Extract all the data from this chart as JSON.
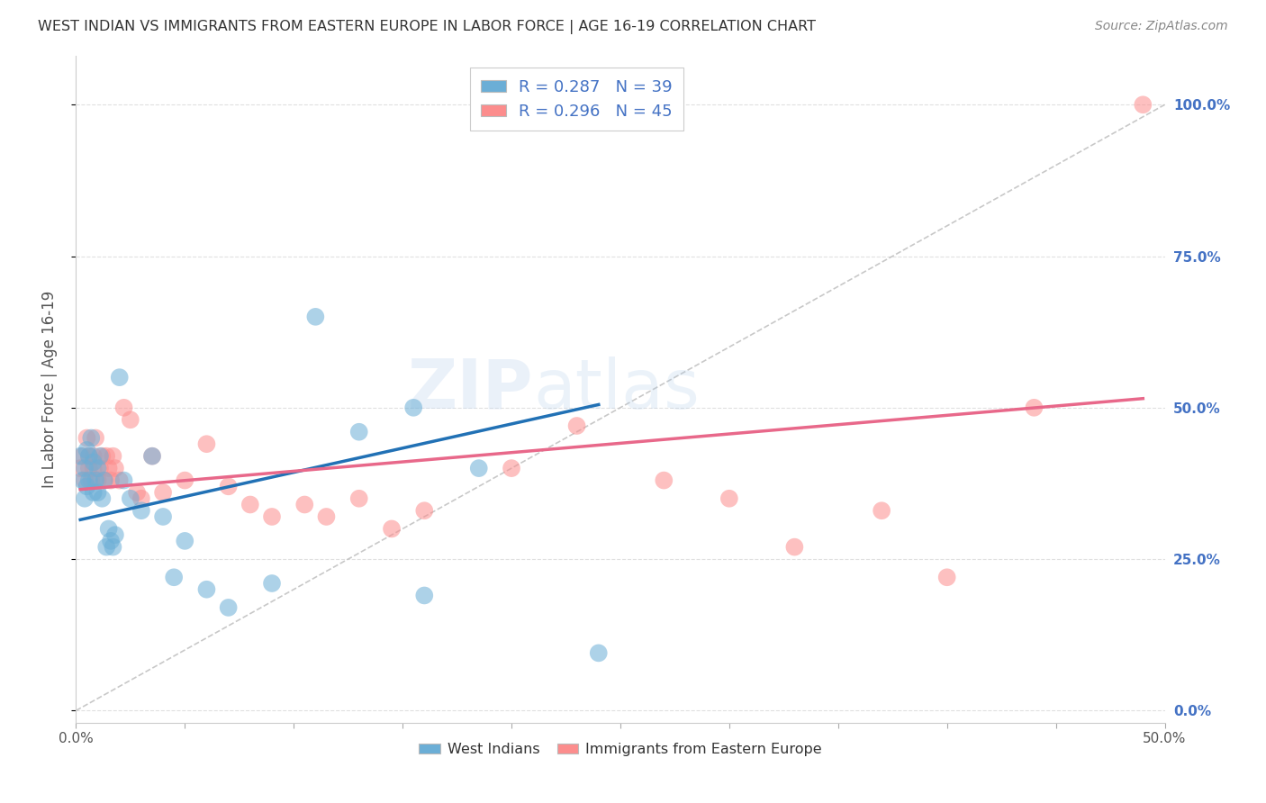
{
  "title": "WEST INDIAN VS IMMIGRANTS FROM EASTERN EUROPE IN LABOR FORCE | AGE 16-19 CORRELATION CHART",
  "source": "Source: ZipAtlas.com",
  "ylabel": "In Labor Force | Age 16-19",
  "xlim": [
    0.0,
    0.5
  ],
  "ylim": [
    -0.02,
    1.08
  ],
  "xtick_positions": [
    0.0,
    0.5
  ],
  "xtick_labels": [
    "0.0%",
    "50.0%"
  ],
  "ytick_positions": [
    0.0,
    0.25,
    0.5,
    0.75,
    1.0
  ],
  "ytick_labels_right": [
    "0.0%",
    "25.0%",
    "50.0%",
    "75.0%",
    "100.0%"
  ],
  "blue_color": "#6baed6",
  "pink_color": "#fc8d8d",
  "blue_line_color": "#2171b5",
  "pink_line_color": "#e8688a",
  "legend_blue_label": "R = 0.287   N = 39",
  "legend_pink_label": "R = 0.296   N = 45",
  "watermark": "ZIPatlas",
  "background_color": "#ffffff",
  "grid_color": "#dddddd",
  "title_color": "#333333",
  "axis_label_color": "#555555",
  "right_tick_color": "#4472c4",
  "blue_scatter_x": [
    0.002,
    0.003,
    0.004,
    0.004,
    0.005,
    0.005,
    0.006,
    0.006,
    0.007,
    0.008,
    0.008,
    0.009,
    0.01,
    0.01,
    0.011,
    0.012,
    0.013,
    0.014,
    0.015,
    0.016,
    0.017,
    0.018,
    0.02,
    0.022,
    0.025,
    0.03,
    0.035,
    0.04,
    0.045,
    0.05,
    0.06,
    0.07,
    0.09,
    0.11,
    0.13,
    0.155,
    0.16,
    0.185,
    0.24
  ],
  "blue_scatter_y": [
    0.42,
    0.38,
    0.4,
    0.35,
    0.43,
    0.37,
    0.42,
    0.38,
    0.45,
    0.41,
    0.36,
    0.38,
    0.4,
    0.36,
    0.42,
    0.35,
    0.38,
    0.27,
    0.3,
    0.28,
    0.27,
    0.29,
    0.55,
    0.38,
    0.35,
    0.33,
    0.42,
    0.32,
    0.22,
    0.28,
    0.2,
    0.17,
    0.21,
    0.65,
    0.46,
    0.5,
    0.19,
    0.4,
    0.095
  ],
  "pink_scatter_x": [
    0.002,
    0.003,
    0.004,
    0.005,
    0.006,
    0.006,
    0.007,
    0.008,
    0.008,
    0.009,
    0.01,
    0.011,
    0.012,
    0.013,
    0.014,
    0.015,
    0.016,
    0.017,
    0.018,
    0.02,
    0.022,
    0.025,
    0.028,
    0.03,
    0.035,
    0.04,
    0.05,
    0.06,
    0.07,
    0.08,
    0.09,
    0.105,
    0.115,
    0.13,
    0.145,
    0.16,
    0.2,
    0.23,
    0.27,
    0.3,
    0.33,
    0.37,
    0.4,
    0.44,
    0.49
  ],
  "pink_scatter_y": [
    0.4,
    0.42,
    0.38,
    0.45,
    0.4,
    0.42,
    0.38,
    0.42,
    0.4,
    0.45,
    0.38,
    0.4,
    0.42,
    0.38,
    0.42,
    0.4,
    0.38,
    0.42,
    0.4,
    0.38,
    0.5,
    0.48,
    0.36,
    0.35,
    0.42,
    0.36,
    0.38,
    0.44,
    0.37,
    0.34,
    0.32,
    0.34,
    0.32,
    0.35,
    0.3,
    0.33,
    0.4,
    0.47,
    0.38,
    0.35,
    0.27,
    0.33,
    0.22,
    0.5,
    1.0
  ],
  "blue_line_x0": 0.002,
  "blue_line_x1": 0.24,
  "blue_line_y0": 0.315,
  "blue_line_y1": 0.505,
  "pink_line_x0": 0.002,
  "pink_line_x1": 0.49,
  "pink_line_y0": 0.365,
  "pink_line_y1": 0.515
}
